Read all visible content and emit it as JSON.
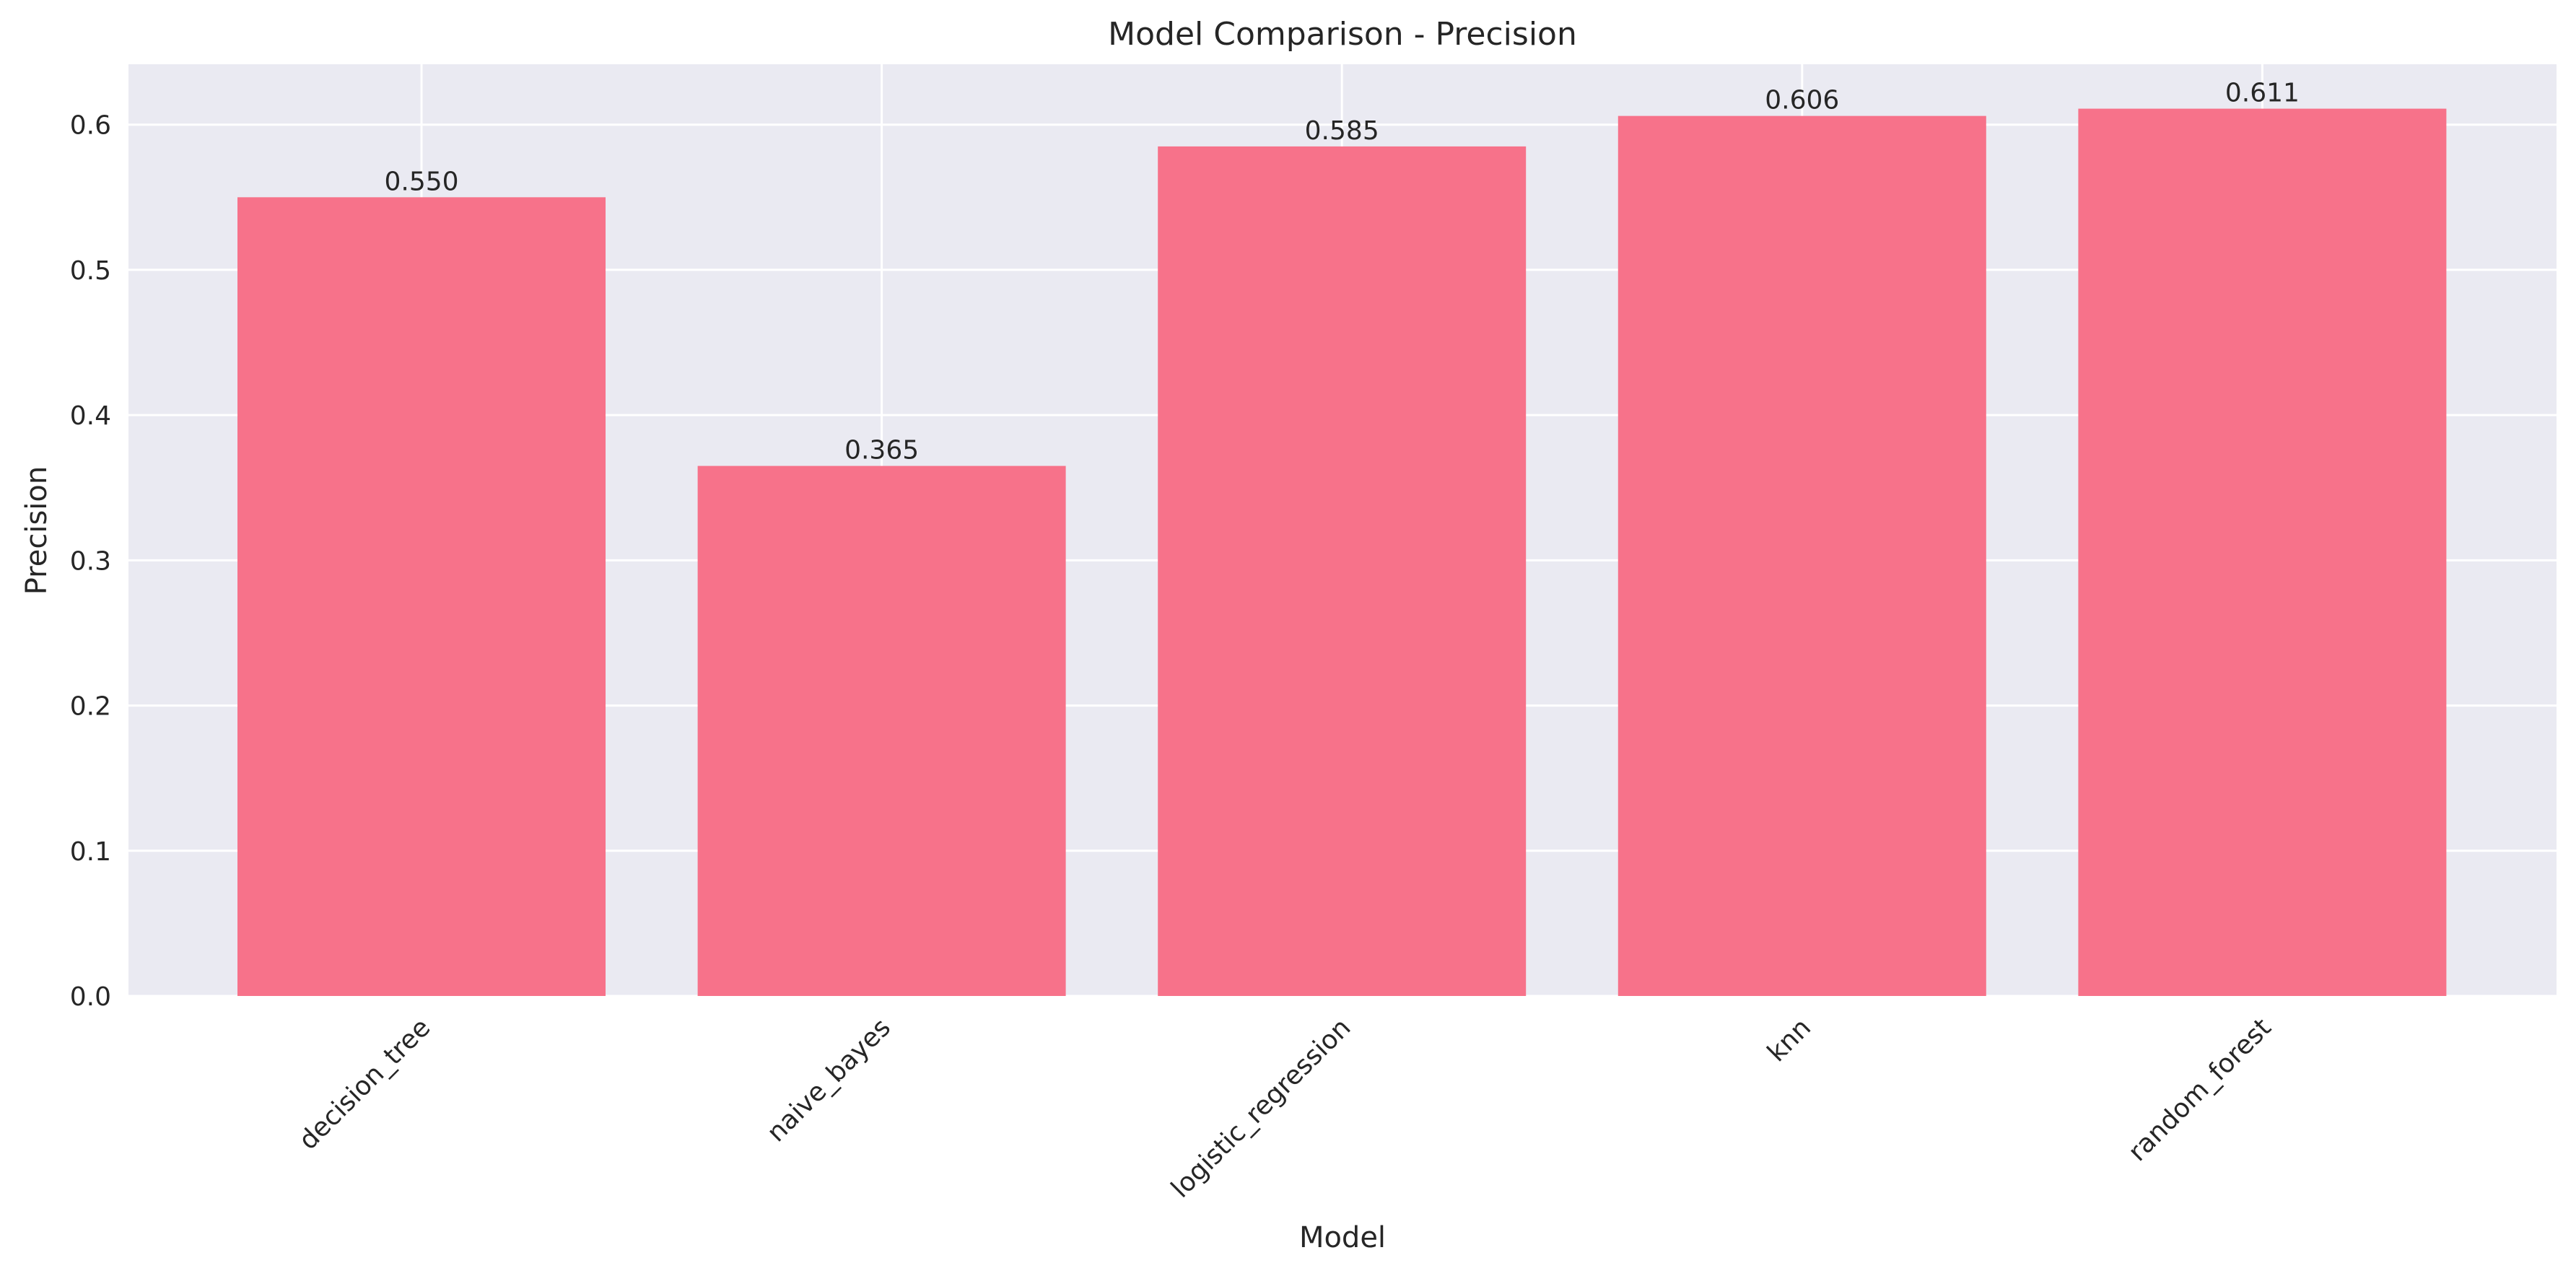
{
  "chart_data": {
    "type": "bar",
    "title": "Model Comparison - Precision",
    "xlabel": "Model",
    "ylabel": "Precision",
    "categories": [
      "decision_tree",
      "naive_bayes",
      "logistic_regression",
      "knn",
      "random_forest"
    ],
    "values": [
      0.55,
      0.365,
      0.585,
      0.606,
      0.611
    ],
    "value_labels": [
      "0.550",
      "0.365",
      "0.585",
      "0.606",
      "0.611"
    ],
    "ylim": [
      0,
      0.6416
    ],
    "yticks": [
      0.0,
      0.1,
      0.2,
      0.3,
      0.4,
      0.5,
      0.6
    ],
    "ytick_labels": [
      "0.0",
      "0.1",
      "0.2",
      "0.3",
      "0.4",
      "0.5",
      "0.6"
    ],
    "xtick_rotation_deg": 45,
    "grid": true,
    "colors": {
      "bar": "#f7728a",
      "plot_background": "#eaeaf2",
      "grid": "#ffffff",
      "text": "#262626"
    }
  }
}
